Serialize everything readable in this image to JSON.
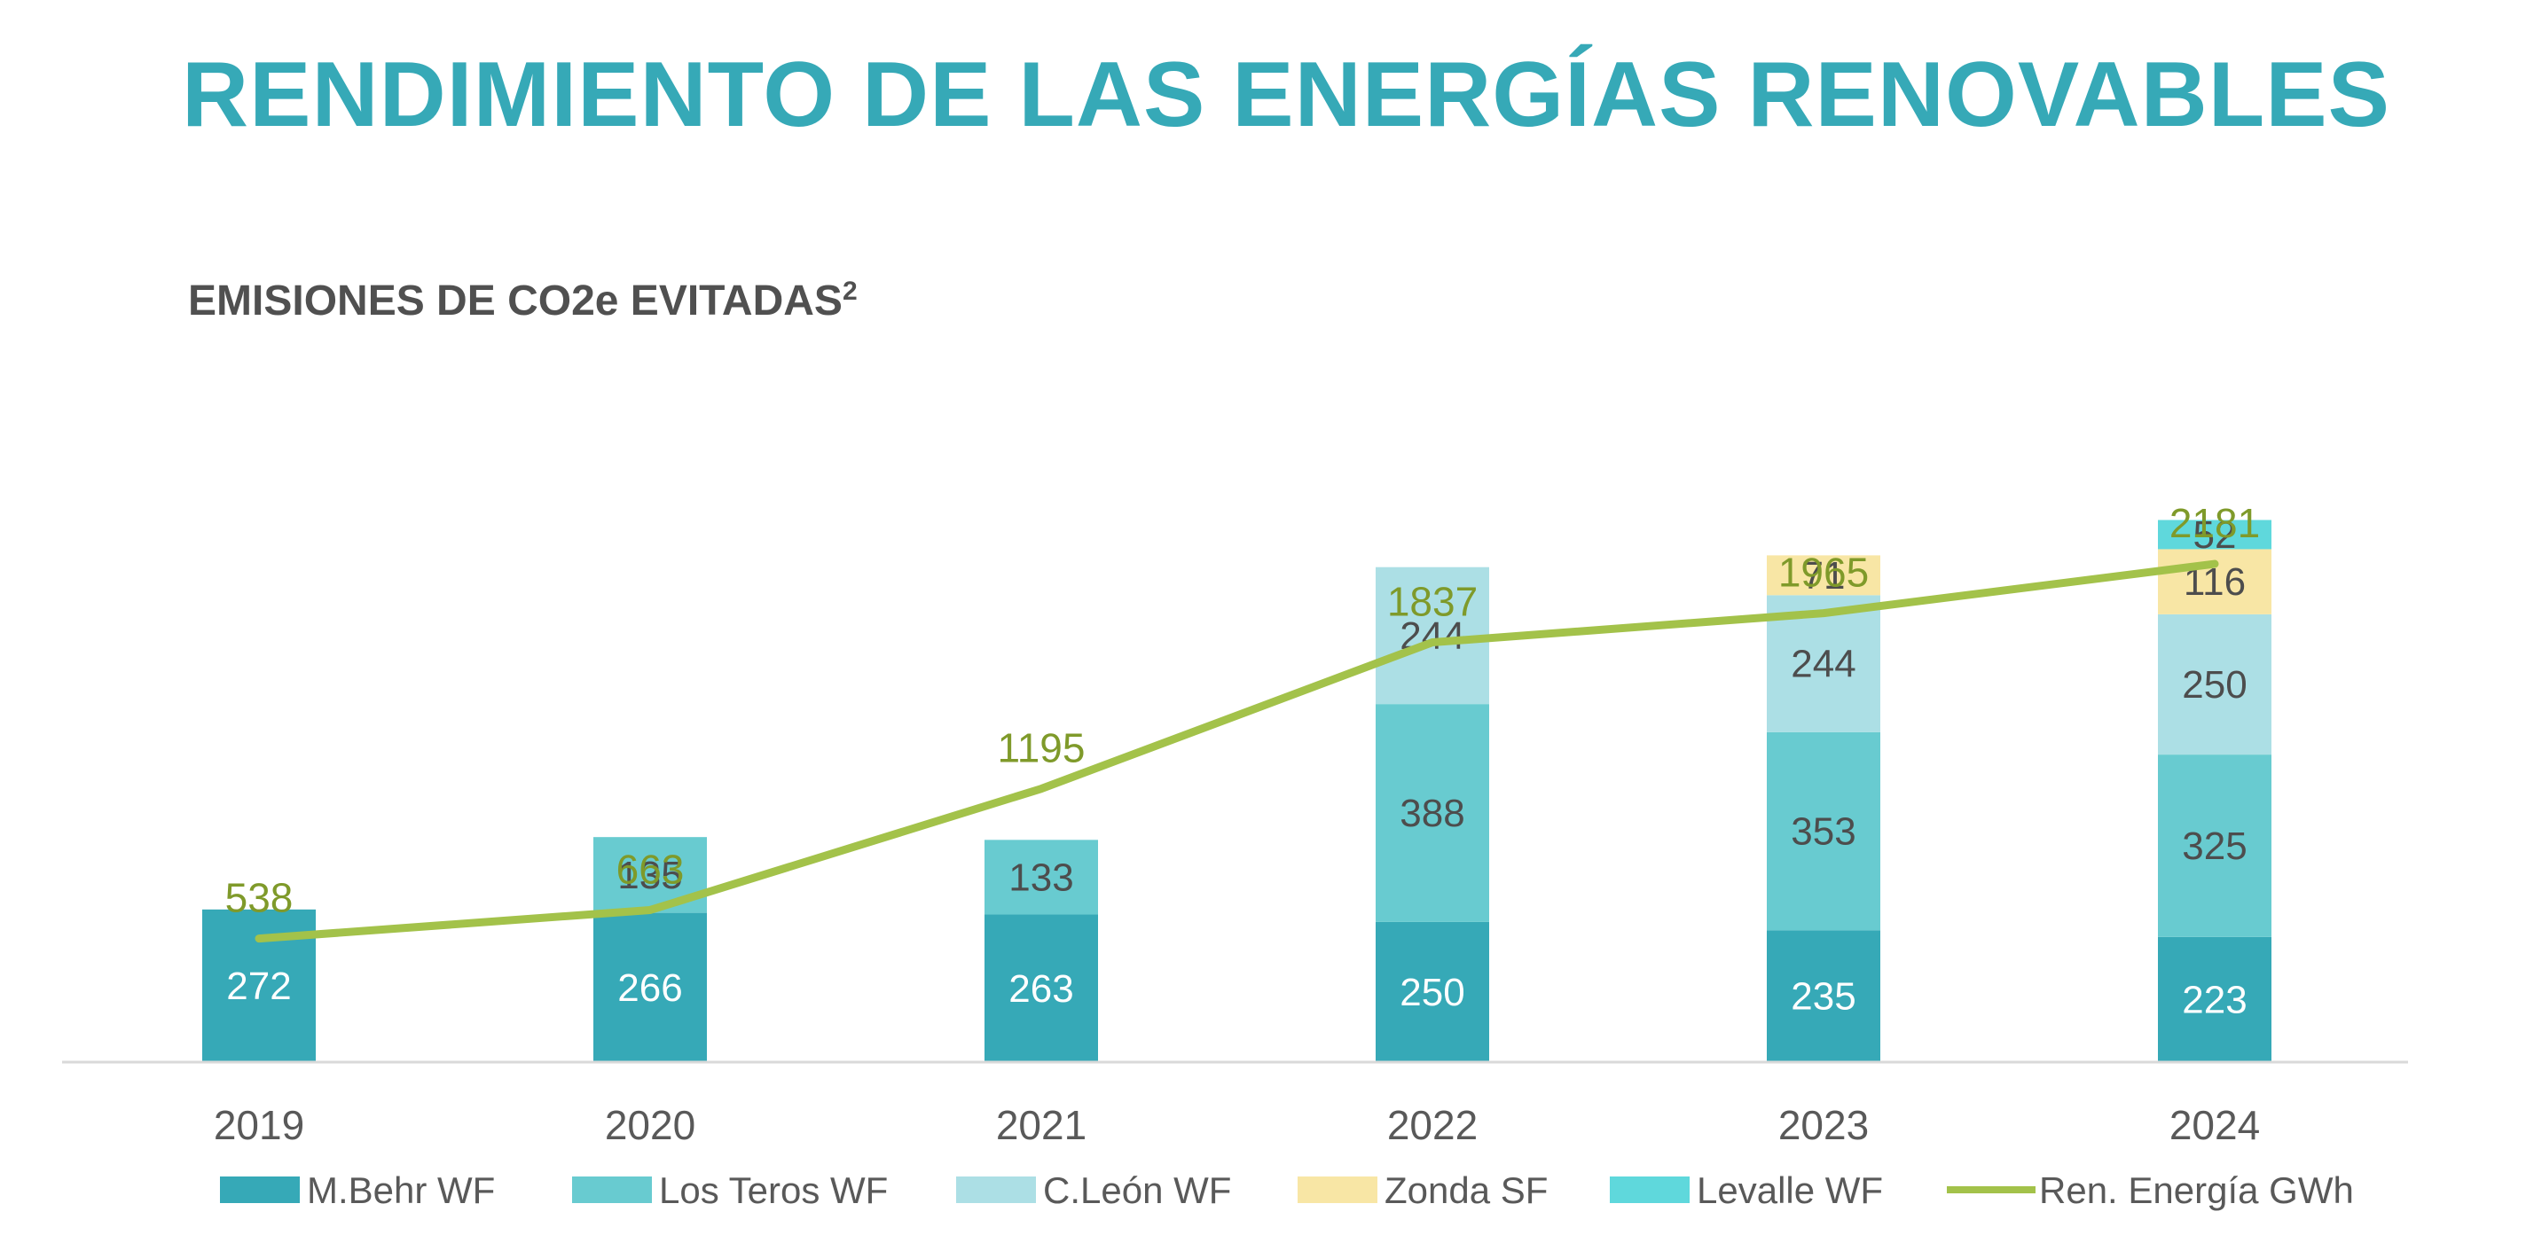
{
  "page": {
    "title": "RENDIMIENTO DE LAS ENERGÍAS RENOVABLES"
  },
  "chart_data": {
    "type": "bar",
    "title": "EMISIONES DE CO2e EVITADAS",
    "title_sup": "2",
    "categories": [
      "2019",
      "2020",
      "2021",
      "2022",
      "2023",
      "2024"
    ],
    "series": [
      {
        "name": "M.Behr WF",
        "values": [
          272,
          266,
          263,
          250,
          235,
          223
        ],
        "color": "#36a9b7",
        "label_color": "#ffffff"
      },
      {
        "name": "Los Teros WF",
        "values": [
          null,
          135,
          133,
          388,
          353,
          325
        ],
        "color": "#68cbd0",
        "label_color": "#4d4d4d"
      },
      {
        "name": "C.León WF",
        "values": [
          null,
          null,
          null,
          244,
          244,
          250
        ],
        "color": "#acdfe5",
        "label_color": "#4d4d4d"
      },
      {
        "name": "Zonda SF",
        "values": [
          null,
          null,
          null,
          null,
          71,
          116
        ],
        "color": "#f8e6a5",
        "label_color": "#4d4d4d"
      },
      {
        "name": "Levalle WF",
        "values": [
          null,
          null,
          null,
          null,
          null,
          52
        ],
        "color": "#5fd8dc",
        "label_color": "#4d4d4d"
      }
    ],
    "line_series": {
      "name": "Ren. Energía GWh",
      "values": [
        538,
        663,
        1195,
        1837,
        1965,
        2181
      ],
      "color": "#a3c24a",
      "label_color": "#7f9a2a"
    },
    "stacked": true,
    "legend_position": "bottom",
    "grid": false,
    "bar_ylim": [
      0,
      1000
    ],
    "line_ylim": [
      0,
      2500
    ]
  }
}
